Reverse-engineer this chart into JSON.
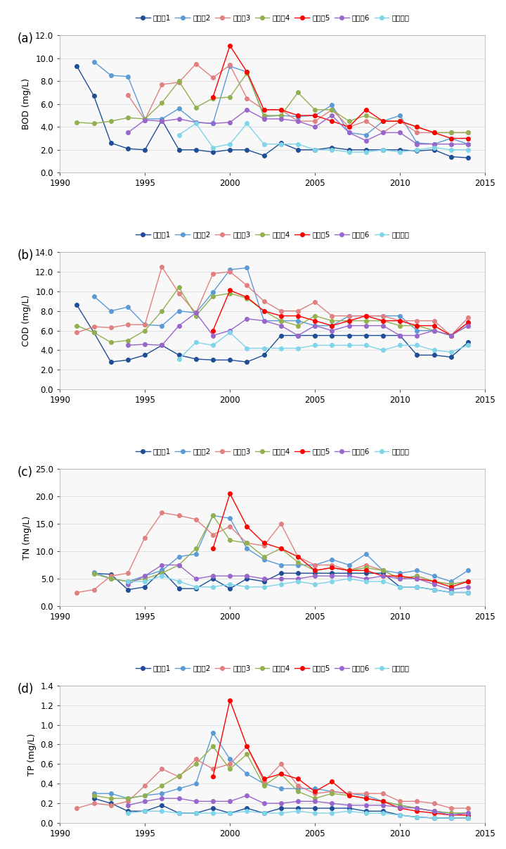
{
  "years": [
    1991,
    1992,
    1993,
    1994,
    1995,
    1996,
    1997,
    1998,
    1999,
    2000,
    2001,
    2002,
    2003,
    2004,
    2005,
    2006,
    2007,
    2008,
    2009,
    2010,
    2011,
    2012,
    2013,
    2014
  ],
  "series_labels": [
    "경안천1",
    "경안천2",
    "경안천3",
    "경안천4",
    "경안천5",
    "경안천6",
    "근지암천"
  ],
  "color_map": {
    "경안천1": "#1F4E96",
    "경안천2": "#5B9BD5",
    "경안천3": "#E08080",
    "경안천4": "#92B050",
    "경안천5": "#FF0000",
    "경안천6": "#9966CC",
    "근지암천": "#7FD4E8"
  },
  "BOD": {
    "ylabel": "BOD (mg/L)",
    "ylim": [
      0.0,
      12.0
    ],
    "yticks": [
      0.0,
      2.0,
      4.0,
      6.0,
      8.0,
      10.0,
      12.0
    ],
    "series": {
      "경안천1": [
        9.3,
        6.7,
        2.6,
        2.1,
        2.0,
        4.6,
        2.0,
        2.0,
        1.8,
        2.0,
        2.0,
        1.5,
        2.6,
        2.0,
        2.0,
        2.2,
        2.0,
        2.0,
        2.0,
        2.0,
        1.9,
        2.0,
        1.4,
        1.3
      ],
      "경안천2": [
        null,
        9.7,
        8.5,
        8.4,
        4.7,
        4.7,
        5.6,
        4.4,
        4.3,
        9.3,
        8.8,
        4.9,
        5.0,
        4.9,
        5.0,
        5.9,
        3.5,
        3.3,
        4.5,
        5.0,
        2.6,
        2.5,
        3.0,
        2.5
      ],
      "경안천3": [
        null,
        null,
        null,
        6.8,
        4.6,
        7.7,
        7.9,
        9.5,
        8.3,
        9.4,
        6.5,
        5.5,
        5.5,
        4.5,
        4.5,
        5.5,
        4.0,
        4.5,
        3.5,
        4.5,
        3.5,
        3.5,
        3.5,
        3.5
      ],
      "경안천4": [
        4.4,
        4.3,
        4.5,
        4.8,
        4.7,
        6.1,
        8.0,
        5.7,
        6.5,
        6.6,
        8.7,
        5.0,
        5.0,
        7.0,
        5.5,
        5.5,
        4.5,
        5.0,
        4.5,
        4.5,
        4.0,
        3.5,
        3.5,
        3.5
      ],
      "경안천5": [
        null,
        null,
        null,
        null,
        null,
        null,
        null,
        null,
        6.6,
        11.1,
        8.8,
        5.5,
        5.5,
        5.0,
        5.0,
        4.5,
        4.0,
        5.5,
        4.5,
        4.5,
        4.0,
        3.5,
        3.0,
        3.0
      ],
      "경안천6": [
        null,
        null,
        null,
        3.5,
        4.6,
        4.5,
        4.7,
        4.4,
        4.3,
        4.4,
        5.5,
        4.7,
        4.7,
        4.5,
        4.0,
        5.0,
        3.5,
        2.8,
        3.5,
        3.5,
        2.5,
        2.5,
        2.5,
        2.5
      ],
      "근지암천": [
        null,
        null,
        null,
        null,
        null,
        null,
        3.3,
        4.3,
        2.2,
        2.5,
        4.3,
        2.5,
        2.5,
        2.5,
        2.0,
        2.0,
        1.8,
        1.8,
        2.0,
        1.8,
        2.0,
        2.2,
        2.0,
        2.0
      ]
    }
  },
  "COD": {
    "ylabel": "COD (mg/L)",
    "ylim": [
      0.0,
      14.0
    ],
    "yticks": [
      0.0,
      2.0,
      4.0,
      6.0,
      8.0,
      10.0,
      12.0,
      14.0
    ],
    "series": {
      "경안천1": [
        8.6,
        5.8,
        2.8,
        3.0,
        3.5,
        4.5,
        3.5,
        3.1,
        3.0,
        3.0,
        2.8,
        3.5,
        5.5,
        5.5,
        5.5,
        5.5,
        5.5,
        5.5,
        5.5,
        5.5,
        3.5,
        3.5,
        3.3,
        4.8
      ],
      "경안천2": [
        null,
        9.5,
        8.0,
        8.4,
        6.6,
        6.5,
        8.0,
        7.8,
        9.9,
        12.2,
        12.4,
        7.0,
        7.0,
        7.0,
        6.5,
        6.5,
        7.5,
        7.5,
        7.5,
        7.5,
        6.0,
        6.0,
        5.5,
        6.8
      ],
      "경안천3": [
        5.8,
        6.4,
        6.3,
        6.6,
        6.6,
        12.5,
        9.8,
        7.8,
        11.8,
        12.0,
        10.6,
        9.0,
        8.0,
        8.0,
        8.9,
        7.5,
        7.5,
        7.5,
        7.5,
        7.0,
        7.0,
        7.0,
        5.5,
        7.3
      ],
      "경안천4": [
        6.5,
        5.8,
        4.8,
        5.0,
        6.0,
        8.0,
        10.4,
        7.5,
        9.5,
        9.8,
        9.3,
        8.0,
        7.0,
        6.5,
        7.5,
        7.0,
        7.0,
        7.0,
        7.0,
        6.5,
        6.5,
        6.0,
        5.5,
        6.5
      ],
      "경안천5": [
        null,
        null,
        null,
        null,
        null,
        null,
        null,
        null,
        6.0,
        10.1,
        9.4,
        8.0,
        7.5,
        7.5,
        7.0,
        6.5,
        7.0,
        7.5,
        7.0,
        7.0,
        6.5,
        6.5,
        5.5,
        6.8
      ],
      "경안천6": [
        null,
        null,
        null,
        4.5,
        4.6,
        4.5,
        6.5,
        7.8,
        5.5,
        6.0,
        7.2,
        7.0,
        6.5,
        5.5,
        6.5,
        6.0,
        6.5,
        6.5,
        6.5,
        5.5,
        5.5,
        6.0,
        5.5,
        6.5
      ],
      "근지암천": [
        null,
        null,
        null,
        null,
        null,
        null,
        3.1,
        4.8,
        4.5,
        5.8,
        4.2,
        4.2,
        4.2,
        4.2,
        4.5,
        4.5,
        4.5,
        4.5,
        4.0,
        4.5,
        4.5,
        4.0,
        3.8,
        4.5
      ]
    }
  },
  "TN": {
    "ylabel": "TN (mg/L)",
    "ylim": [
      0.0,
      25.0
    ],
    "yticks": [
      0.0,
      5.0,
      10.0,
      15.0,
      20.0,
      25.0
    ],
    "series": {
      "경안천1": [
        null,
        6.0,
        5.8,
        3.0,
        3.5,
        6.5,
        3.2,
        3.2,
        5.0,
        3.2,
        5.0,
        4.5,
        6.0,
        6.0,
        6.0,
        6.0,
        6.0,
        6.0,
        6.0,
        3.5,
        3.5,
        3.0,
        2.5,
        2.5
      ],
      "경안천2": [
        null,
        6.2,
        5.0,
        4.5,
        5.5,
        6.5,
        9.0,
        9.5,
        16.5,
        16.0,
        10.5,
        8.5,
        7.5,
        7.5,
        7.5,
        8.5,
        7.5,
        9.5,
        6.5,
        6.0,
        6.5,
        5.5,
        4.5,
        6.5
      ],
      "경안천3": [
        2.5,
        3.0,
        5.5,
        6.0,
        12.5,
        17.0,
        16.5,
        15.8,
        13.0,
        14.5,
        11.5,
        11.0,
        15.0,
        9.0,
        7.5,
        7.5,
        6.5,
        7.5,
        6.5,
        5.0,
        5.5,
        4.5,
        4.0,
        4.5
      ],
      "경안천4": [
        null,
        5.9,
        5.0,
        4.5,
        5.0,
        6.0,
        7.5,
        10.5,
        16.5,
        12.0,
        11.5,
        9.0,
        10.5,
        8.0,
        6.5,
        7.0,
        6.5,
        7.0,
        6.5,
        5.0,
        5.5,
        4.5,
        4.0,
        4.5
      ],
      "경안천5": [
        null,
        null,
        null,
        null,
        null,
        null,
        null,
        null,
        10.5,
        20.5,
        14.5,
        11.5,
        10.5,
        9.0,
        6.5,
        7.0,
        6.5,
        6.5,
        5.5,
        5.5,
        5.0,
        4.5,
        3.5,
        4.5
      ],
      "경안천6": [
        null,
        null,
        null,
        4.0,
        5.5,
        7.5,
        7.5,
        5.0,
        5.5,
        5.5,
        5.5,
        5.0,
        5.0,
        5.0,
        5.5,
        5.5,
        5.5,
        5.0,
        5.5,
        5.0,
        5.0,
        4.0,
        3.0,
        3.5
      ],
      "근지암천": [
        null,
        null,
        null,
        4.5,
        4.5,
        5.5,
        4.5,
        3.5,
        3.5,
        4.0,
        3.5,
        3.5,
        4.0,
        4.5,
        4.0,
        4.5,
        5.0,
        4.5,
        4.5,
        3.5,
        3.5,
        3.0,
        2.5,
        2.5
      ]
    }
  },
  "TP": {
    "ylabel": "TP (mg/L)",
    "ylim": [
      0.0,
      1.4
    ],
    "yticks": [
      0.0,
      0.2,
      0.4,
      0.6,
      0.8,
      1.0,
      1.2,
      1.4
    ],
    "series": {
      "경안천1": [
        null,
        0.25,
        0.2,
        0.12,
        0.12,
        0.18,
        0.1,
        0.1,
        0.15,
        0.1,
        0.15,
        0.1,
        0.15,
        0.15,
        0.15,
        0.15,
        0.15,
        0.12,
        0.12,
        0.08,
        0.06,
        0.05,
        0.05,
        0.05
      ],
      "경안천2": [
        null,
        0.3,
        0.3,
        0.25,
        0.28,
        0.3,
        0.35,
        0.4,
        0.92,
        0.65,
        0.5,
        0.4,
        0.35,
        0.35,
        0.35,
        0.32,
        0.3,
        0.28,
        0.22,
        0.18,
        0.15,
        0.12,
        0.1,
        0.1
      ],
      "경안천3": [
        0.15,
        0.2,
        0.18,
        0.22,
        0.38,
        0.55,
        0.47,
        0.65,
        0.55,
        0.6,
        0.78,
        0.42,
        0.6,
        0.38,
        0.3,
        0.32,
        0.3,
        0.3,
        0.3,
        0.22,
        0.22,
        0.2,
        0.15,
        0.15
      ],
      "경안천4": [
        null,
        0.28,
        0.25,
        0.25,
        0.28,
        0.38,
        0.48,
        0.6,
        0.78,
        0.55,
        0.7,
        0.38,
        0.5,
        0.32,
        0.25,
        0.3,
        0.28,
        0.25,
        0.22,
        0.18,
        0.15,
        0.12,
        0.1,
        0.1
      ],
      "경안천5": [
        null,
        null,
        null,
        null,
        null,
        null,
        null,
        null,
        0.47,
        1.25,
        0.78,
        0.45,
        0.5,
        0.45,
        0.32,
        0.42,
        0.28,
        0.25,
        0.22,
        0.15,
        0.12,
        0.1,
        0.08,
        0.08
      ],
      "경안천6": [
        null,
        null,
        null,
        0.18,
        0.22,
        0.25,
        0.25,
        0.22,
        0.22,
        0.22,
        0.28,
        0.2,
        0.2,
        0.22,
        0.22,
        0.2,
        0.18,
        0.18,
        0.18,
        0.16,
        0.15,
        0.12,
        0.08,
        0.1
      ],
      "근지암천": [
        null,
        null,
        null,
        0.1,
        0.12,
        0.12,
        0.1,
        0.1,
        0.1,
        0.1,
        0.12,
        0.1,
        0.1,
        0.12,
        0.1,
        0.1,
        0.12,
        0.1,
        0.1,
        0.08,
        0.06,
        0.05,
        0.05,
        0.05
      ]
    }
  },
  "panel_labels": [
    "(a)",
    "(b)",
    "(c)",
    "(d)"
  ],
  "xlim": [
    1990,
    2015
  ],
  "xticks": [
    1990,
    1995,
    2000,
    2005,
    2010,
    2015
  ],
  "marker_size": 4,
  "line_width": 1.0,
  "background_color": "#FFFFFF",
  "grid_color": "#DDDDDD"
}
